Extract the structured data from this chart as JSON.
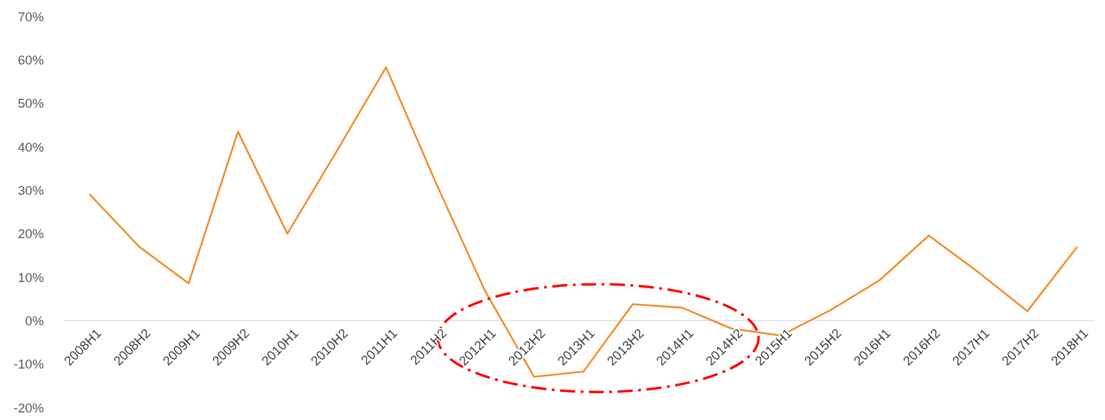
{
  "chart_data": {
    "type": "line",
    "categories": [
      "2008H1",
      "2008H2",
      "2009H1",
      "2009H2",
      "2010H1",
      "2010H2",
      "2011H1",
      "2011H2",
      "2012H1",
      "2012H2",
      "2013H1",
      "2013H2",
      "2014H1",
      "2014H2",
      "2015H1",
      "2015H2",
      "2016H1",
      "2016H2",
      "2017H1",
      "2017H2",
      "2018H1"
    ],
    "series": [
      {
        "color": "#f28c28",
        "values": [
          29,
          17,
          8.6,
          43.5,
          20,
          39,
          58.3,
          32,
          7,
          -12.9,
          -11.7,
          3.8,
          3,
          -1.8,
          -3.4,
          2.4,
          9.3,
          19.6,
          11.2,
          2.2,
          16.9
        ]
      }
    ],
    "ylim": [
      -20,
      70
    ],
    "yticks": [
      {
        "value": -20,
        "label": "-20%"
      },
      {
        "value": -10,
        "label": "-10%"
      },
      {
        "value": 0,
        "label": "0%"
      },
      {
        "value": 10,
        "label": "10%"
      },
      {
        "value": 20,
        "label": "20%"
      },
      {
        "value": 30,
        "label": "30%"
      },
      {
        "value": 40,
        "label": "40%"
      },
      {
        "value": 50,
        "label": "50%"
      },
      {
        "value": 60,
        "label": "60%"
      },
      {
        "value": 70,
        "label": "70%"
      }
    ],
    "grid": false,
    "marker": "none",
    "line_style": "solid"
  }
}
